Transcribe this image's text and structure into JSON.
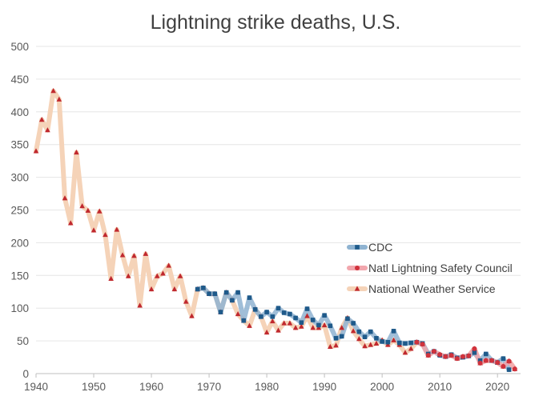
{
  "chart_data": {
    "type": "line",
    "title": "Lightning strike deaths, U.S.",
    "xlabel": "",
    "ylabel": "",
    "xlim": [
      1940,
      2024
    ],
    "ylim": [
      0,
      500
    ],
    "x_ticks": [
      1940,
      1950,
      1960,
      1970,
      1980,
      1990,
      2000,
      2010,
      2020
    ],
    "y_ticks": [
      0,
      50,
      100,
      150,
      200,
      250,
      300,
      350,
      400,
      450,
      500
    ],
    "grid": "horizontal",
    "legend_position": "right",
    "series": [
      {
        "name": "CDC",
        "color": "#1f5a8a",
        "line_color": "#8fb3d1",
        "marker": "square",
        "x": [
          1968,
          1969,
          1970,
          1971,
          1972,
          1973,
          1974,
          1975,
          1976,
          1977,
          1978,
          1979,
          1980,
          1981,
          1982,
          1983,
          1984,
          1985,
          1986,
          1987,
          1988,
          1989,
          1990,
          1991,
          1992,
          1993,
          1994,
          1995,
          1996,
          1997,
          1998,
          1999,
          2000,
          2001,
          2002,
          2003,
          2004,
          2005,
          2006,
          2007,
          2008,
          2009,
          2010,
          2011,
          2012,
          2013,
          2014,
          2015,
          2016,
          2017,
          2018,
          2019,
          2020,
          2021,
          2022
        ],
        "y": [
          129,
          131,
          122,
          122,
          94,
          124,
          112,
          124,
          81,
          116,
          98,
          87,
          94,
          87,
          100,
          93,
          91,
          85,
          78,
          99,
          82,
          74,
          89,
          73,
          54,
          57,
          84,
          77,
          64,
          56,
          64,
          54,
          49,
          48,
          65,
          47,
          46,
          47,
          48,
          46,
          30,
          34,
          28,
          26,
          29,
          24,
          25,
          27,
          32,
          20,
          30,
          20,
          17,
          23,
          6
        ]
      },
      {
        "name": "Natl Lightning Safety Council",
        "color": "#d0323c",
        "line_color": "#f2a6ad",
        "marker": "circle",
        "x": [
          2006,
          2007,
          2008,
          2009,
          2010,
          2011,
          2012,
          2013,
          2014,
          2015,
          2016,
          2017,
          2018,
          2019,
          2020,
          2021,
          2022,
          2023
        ],
        "y": [
          48,
          45,
          28,
          34,
          29,
          26,
          28,
          23,
          26,
          27,
          38,
          16,
          20,
          20,
          17,
          11,
          19,
          7
        ]
      },
      {
        "name": "National Weather Service",
        "color": "#c0282e",
        "line_color": "#f5d3b8",
        "marker": "triangle",
        "x": [
          1940,
          1941,
          1942,
          1943,
          1944,
          1945,
          1946,
          1947,
          1948,
          1949,
          1950,
          1951,
          1952,
          1953,
          1954,
          1955,
          1956,
          1957,
          1958,
          1959,
          1960,
          1961,
          1962,
          1963,
          1964,
          1965,
          1966,
          1967,
          1968,
          1969,
          1970,
          1971,
          1972,
          1973,
          1974,
          1975,
          1976,
          1977,
          1978,
          1979,
          1980,
          1981,
          1982,
          1983,
          1984,
          1985,
          1986,
          1987,
          1988,
          1989,
          1990,
          1991,
          1992,
          1993,
          1994,
          1995,
          1996,
          1997,
          1998,
          1999,
          2000,
          2001,
          2002,
          2003,
          2004,
          2005,
          2006,
          2007,
          2008,
          2009,
          2010,
          2011,
          2012,
          2013,
          2014,
          2015,
          2016,
          2017,
          2018,
          2019,
          2020,
          2021,
          2022,
          2023
        ],
        "y": [
          340,
          388,
          372,
          432,
          419,
          268,
          230,
          338,
          256,
          249,
          219,
          248,
          212,
          145,
          220,
          181,
          149,
          180,
          104,
          183,
          129,
          149,
          153,
          165,
          129,
          149,
          110,
          88,
          129,
          131,
          122,
          122,
          94,
          124,
          112,
          91,
          81,
          73,
          98,
          87,
          63,
          80,
          66,
          77,
          77,
          70,
          72,
          88,
          70,
          70,
          74,
          41,
          43,
          70,
          85,
          65,
          53,
          42,
          44,
          46,
          51,
          44,
          51,
          44,
          32,
          38,
          48,
          45,
          28,
          34,
          29,
          26,
          28,
          23,
          26,
          27,
          38,
          16,
          20,
          20,
          17,
          11,
          19,
          7
        ]
      }
    ]
  }
}
